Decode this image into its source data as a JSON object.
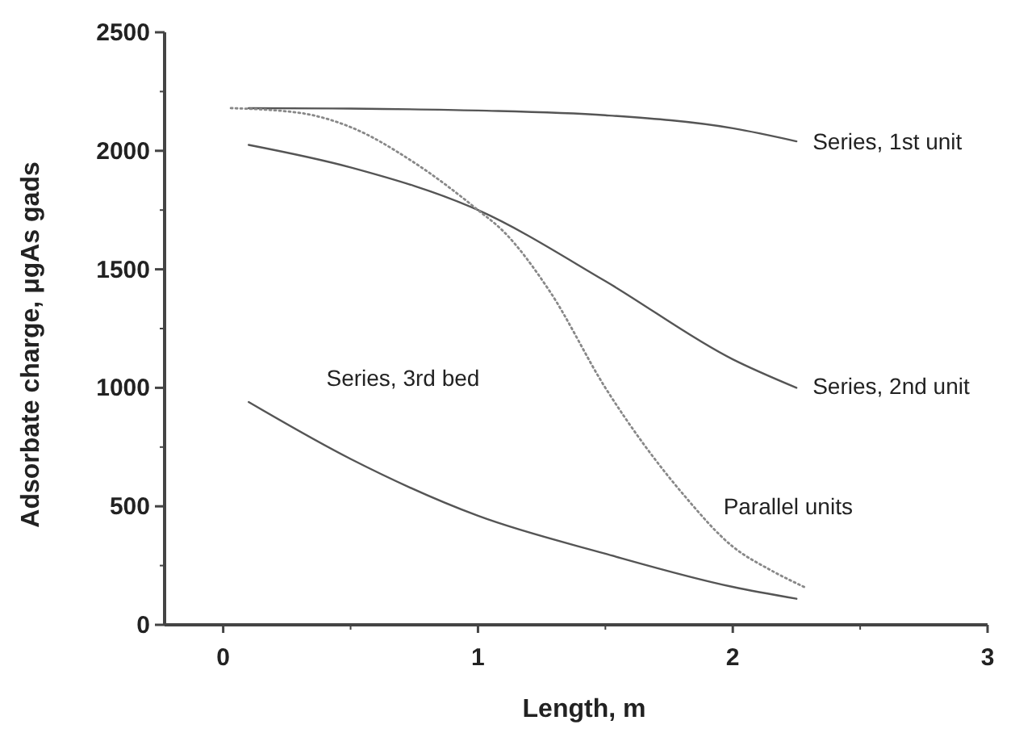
{
  "chart_data": {
    "type": "line",
    "xlabel": "Length, m",
    "ylabel": "Adsorbate charge, μgAs gads",
    "xlim": [
      -0.23,
      3
    ],
    "xticks": [
      0,
      1,
      2,
      3
    ],
    "ylim": [
      0,
      2500
    ],
    "yticks": [
      0,
      500,
      1000,
      1500,
      2000,
      2500
    ],
    "grid": false,
    "marker": "none",
    "series": [
      {
        "name": "Series, 1st unit",
        "color": "#555555",
        "line_style": "solid",
        "x": [
          0.1,
          0.5,
          1.0,
          1.5,
          2.0,
          2.25
        ],
        "values": [
          2180,
          2178,
          2170,
          2150,
          2095,
          2040
        ]
      },
      {
        "name": "Series, 2nd unit",
        "color": "#555555",
        "line_style": "solid",
        "x": [
          0.1,
          0.5,
          1.0,
          1.5,
          2.0,
          2.25
        ],
        "values": [
          2025,
          1930,
          1750,
          1450,
          1120,
          1000
        ]
      },
      {
        "name": "Parallel units",
        "color": "#888888",
        "line_style": "dotted",
        "x": [
          0.03,
          0.3,
          0.5,
          0.75,
          1.0,
          1.1,
          1.28,
          1.5,
          1.81,
          2.0,
          2.15,
          2.28
        ],
        "values": [
          2180,
          2160,
          2100,
          1950,
          1750,
          1660,
          1410,
          1000,
          545,
          330,
          230,
          160
        ]
      },
      {
        "name": "Series, 3rd bed",
        "color": "#555555",
        "line_style": "solid",
        "x": [
          0.1,
          0.5,
          1.0,
          1.5,
          2.0,
          2.25
        ],
        "values": [
          940,
          700,
          460,
          300,
          160,
          110
        ]
      }
    ]
  }
}
